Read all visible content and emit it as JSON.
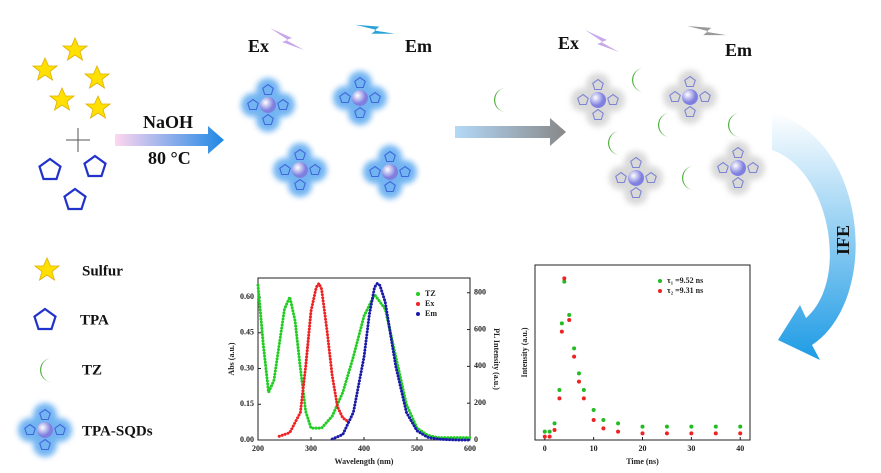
{
  "scheme": {
    "step1_ex": "Ex",
    "step1_em": "Em",
    "reagent": "NaOH",
    "temperature": "80 °C",
    "step2_ex": "Ex",
    "step2_em": "Em",
    "mechanism": "IFE"
  },
  "legend": [
    "Sulfur",
    "TPA",
    "TZ",
    "TPA-SQDs"
  ],
  "chart_data": [
    {
      "type": "line",
      "xlabel": "Wavelength (nm)",
      "ylabel": "Abs (a.u.)",
      "y2label": "PL Intensity (a.u.)",
      "xlim": [
        200,
        600
      ],
      "xticks": [
        200,
        300,
        400,
        500,
        600
      ],
      "ylim": [
        0,
        0.68
      ],
      "yticks": [
        {
          "value": 0,
          "label": "0.00"
        },
        {
          "value": 0.15,
          "label": "0.15"
        },
        {
          "value": 0.3,
          "label": "0.30"
        },
        {
          "value": 0.45,
          "label": "0.45"
        },
        {
          "value": 0.6,
          "label": "0.60"
        }
      ],
      "y2lim": [
        0,
        880
      ],
      "y2ticks": [
        0,
        200,
        400,
        600,
        800
      ],
      "legend": "upper right",
      "series": [
        {
          "name": "TZ",
          "color": "#22cc22",
          "x": [
            200,
            210,
            220,
            230,
            240,
            250,
            260,
            270,
            280,
            290,
            300,
            320,
            340,
            360,
            380,
            400,
            420,
            440,
            460,
            480,
            500,
            520,
            540,
            560,
            580,
            600
          ],
          "values": [
            0.65,
            0.4,
            0.2,
            0.25,
            0.4,
            0.55,
            0.6,
            0.5,
            0.3,
            0.12,
            0.05,
            0.05,
            0.1,
            0.2,
            0.35,
            0.52,
            0.61,
            0.55,
            0.35,
            0.15,
            0.05,
            0.02,
            0.01,
            0.01,
            0.01,
            0.01
          ]
        },
        {
          "name": "Ex",
          "color": "#ee2222",
          "axis": "y2",
          "x": [
            240,
            260,
            280,
            290,
            300,
            310,
            315,
            320,
            330,
            340,
            350,
            360,
            370
          ],
          "values": [
            20,
            40,
            150,
            400,
            700,
            830,
            850,
            820,
            600,
            350,
            180,
            120,
            100
          ]
        },
        {
          "name": "Em",
          "color": "#1a1aaa",
          "axis": "y2",
          "x": [
            340,
            360,
            380,
            400,
            410,
            420,
            425,
            430,
            440,
            460,
            480,
            500,
            520,
            540,
            560,
            580,
            600
          ],
          "values": [
            5,
            30,
            150,
            450,
            680,
            830,
            850,
            840,
            750,
            400,
            150,
            50,
            15,
            5,
            2,
            0,
            0
          ]
        }
      ]
    },
    {
      "type": "scatter",
      "xlabel": "Time (ns)",
      "ylabel": "Intensity (a.u.)",
      "xlim": [
        -2,
        42
      ],
      "xticks": [
        0,
        10,
        20,
        30,
        40
      ],
      "ylim": [
        0,
        1.05
      ],
      "legend": "upper right",
      "series": [
        {
          "name": "τ₁ =9.52 ns",
          "color": "#22bb22",
          "x": [
            0,
            1,
            2,
            3,
            3.5,
            4,
            5,
            6,
            7,
            8,
            10,
            12,
            15,
            20,
            25,
            30,
            35,
            40
          ],
          "values": [
            0.05,
            0.05,
            0.1,
            0.3,
            0.7,
            0.95,
            0.75,
            0.55,
            0.4,
            0.3,
            0.18,
            0.12,
            0.1,
            0.08,
            0.08,
            0.08,
            0.08,
            0.08
          ]
        },
        {
          "name": "τ₂ =9.31 ns",
          "color": "#ee2222",
          "x": [
            0,
            1,
            2,
            3,
            3.5,
            4,
            5,
            6,
            7,
            8,
            10,
            12,
            15,
            20,
            25,
            30,
            35,
            40
          ],
          "values": [
            0.02,
            0.02,
            0.06,
            0.25,
            0.65,
            0.97,
            0.72,
            0.5,
            0.35,
            0.25,
            0.12,
            0.07,
            0.05,
            0.04,
            0.04,
            0.04,
            0.04,
            0.04
          ]
        }
      ]
    }
  ]
}
